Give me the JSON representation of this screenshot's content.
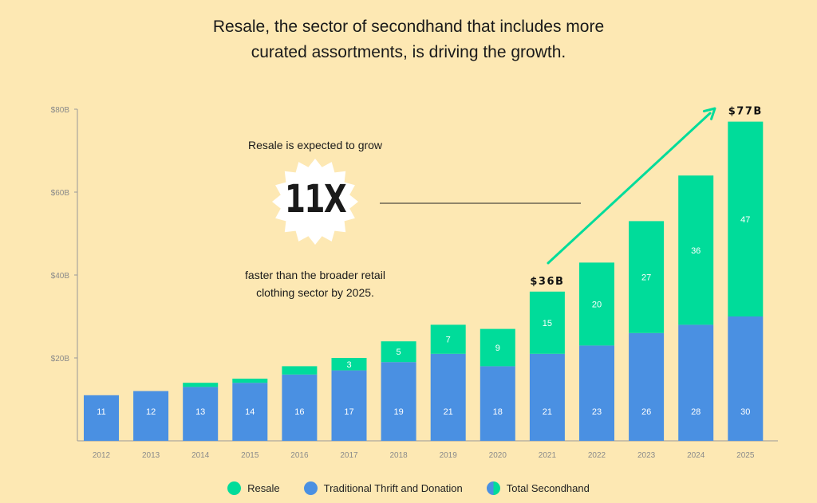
{
  "title": {
    "line1": "Resale, the sector of secondhand that includes more",
    "line2": "curated assortments, is driving the growth."
  },
  "callout": {
    "top": "Resale is expected to grow",
    "multiplier": "11X",
    "bottom_line1": "faster than the broader retail",
    "bottom_line2": "clothing sector by 2025."
  },
  "colors": {
    "resale": "#00dc9a",
    "traditional": "#4a90e2",
    "background": "#fde8b3",
    "axis": "#999999"
  },
  "chart_data": {
    "type": "bar",
    "stacked": true,
    "categories": [
      "2012",
      "2013",
      "2014",
      "2015",
      "2016",
      "2017",
      "2018",
      "2019",
      "2020",
      "2021",
      "2022",
      "2023",
      "2024",
      "2025"
    ],
    "series": [
      {
        "name": "Traditional Thrift and Donation",
        "values": [
          11,
          12,
          13,
          14,
          16,
          17,
          19,
          21,
          18,
          21,
          23,
          26,
          28,
          30
        ]
      },
      {
        "name": "Resale",
        "values": [
          0,
          0,
          1,
          1,
          2,
          3,
          5,
          7,
          9,
          15,
          20,
          27,
          36,
          47
        ]
      }
    ],
    "segment_labels": {
      "traditional": [
        "11",
        "12",
        "13",
        "14",
        "16",
        "17",
        "19",
        "21",
        "18",
        "21",
        "23",
        "26",
        "28",
        "30"
      ],
      "resale": [
        "",
        "",
        "",
        "",
        "",
        "3",
        "5",
        "7",
        "9",
        "15",
        "20",
        "27",
        "36",
        "47"
      ]
    },
    "annotations": [
      {
        "category": "2021",
        "text": "$36B"
      },
      {
        "category": "2025",
        "text": "$77B"
      }
    ],
    "yticks": [
      "$20B",
      "$40B",
      "$60B",
      "$80B"
    ],
    "ytick_values": [
      20,
      40,
      60,
      80
    ],
    "ylim": [
      0,
      80
    ],
    "title": "",
    "xlabel": "",
    "ylabel": "",
    "grid": false,
    "legend_position": "bottom"
  },
  "legend": [
    {
      "label": "Resale",
      "color": "#00dc9a"
    },
    {
      "label": "Traditional Thrift and Donation",
      "color": "#4a90e2"
    },
    {
      "label": "Total Secondhand",
      "color": "split"
    }
  ]
}
